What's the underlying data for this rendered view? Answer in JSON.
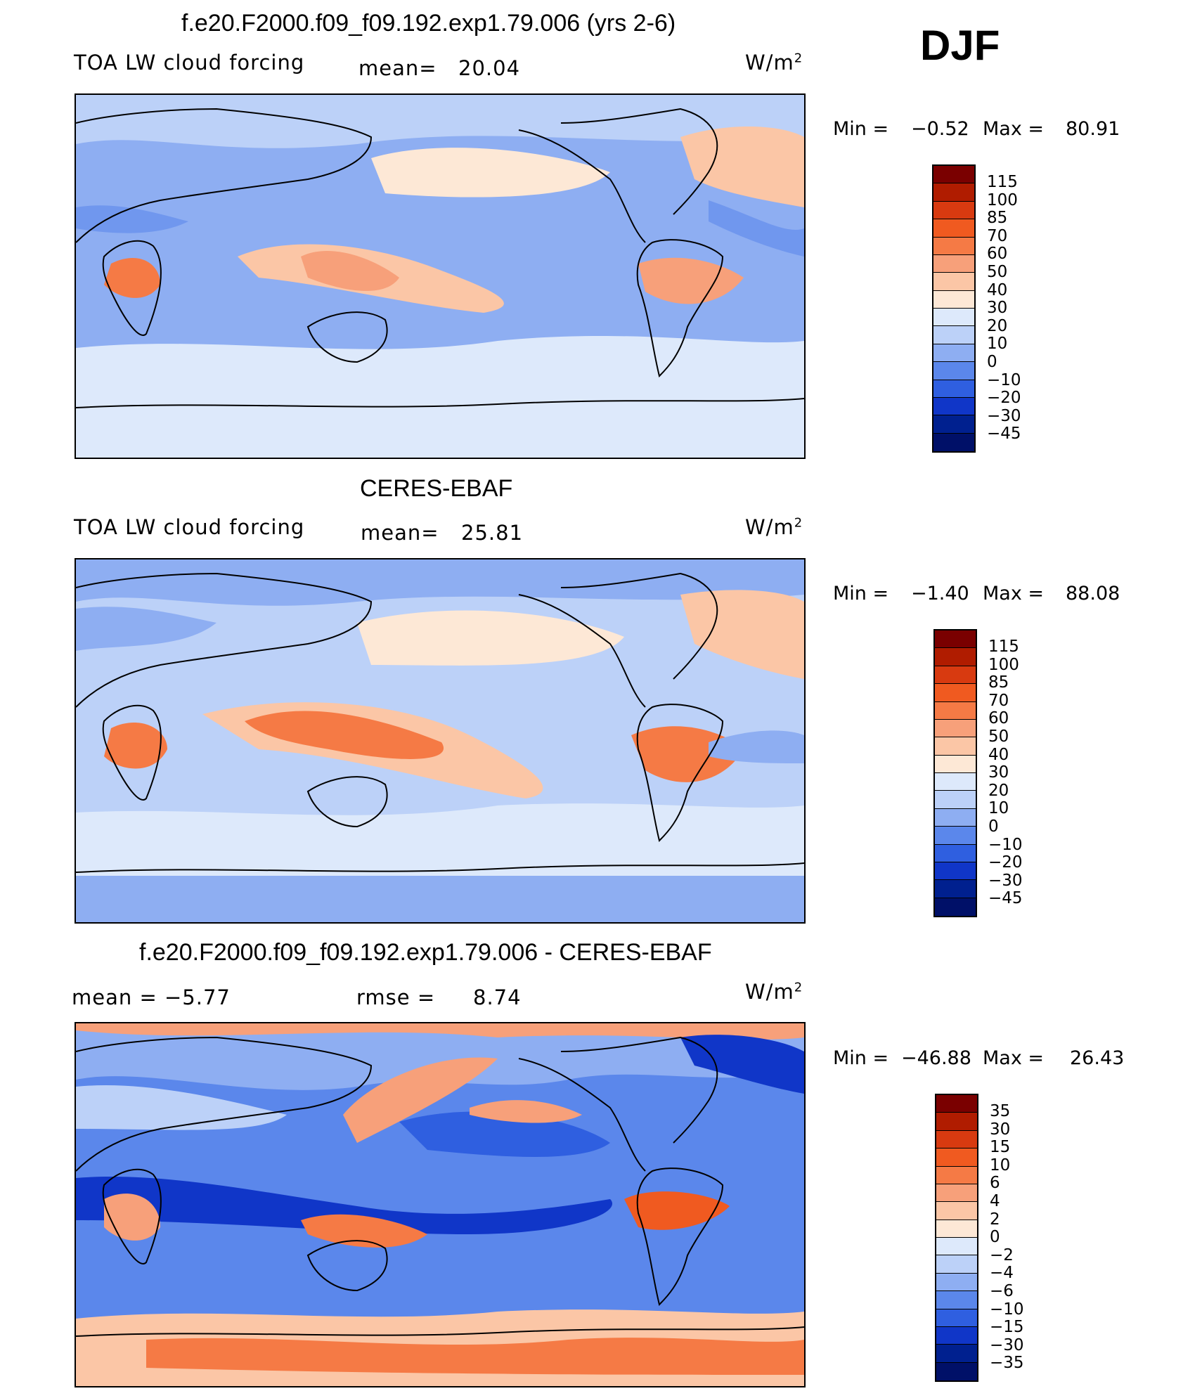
{
  "header": {
    "season": "DJF"
  },
  "panels": [
    {
      "title": "f.e20.F2000.f09_f09.192.exp1.79.006 (yrs 2-6)",
      "left_label": "TOA LW cloud forcing",
      "center_prefix": "mean=",
      "center_value": "20.04",
      "units": "W/m",
      "units_sup": "2",
      "stats": {
        "min_label": "Min =",
        "min": "-0.52",
        "max_label": "Max =",
        "max": "80.91"
      },
      "colorbar": {
        "levels": [
          "115",
          "100",
          "85",
          "70",
          "60",
          "50",
          "40",
          "30",
          "20",
          "10",
          "0",
          "-10",
          "-20",
          "-30",
          "-45"
        ],
        "colors": [
          "#7a0000",
          "#b01c00",
          "#d83a10",
          "#f05a20",
          "#f57a45",
          "#f7a07a",
          "#fbc6a6",
          "#fde8d6",
          "#dde9fb",
          "#bcd1f8",
          "#8eaef2",
          "#5b87eb",
          "#2f5fe0",
          "#1036c8",
          "#00208f",
          "#001068"
        ]
      }
    },
    {
      "title": "CERES-EBAF",
      "left_label": "TOA LW cloud forcing",
      "center_prefix": "mean=",
      "center_value": "25.81",
      "units": "W/m",
      "units_sup": "2",
      "stats": {
        "min_label": "Min =",
        "min": "-1.40",
        "max_label": "Max =",
        "max": "88.08"
      },
      "colorbar": {
        "levels": [
          "115",
          "100",
          "85",
          "70",
          "60",
          "50",
          "40",
          "30",
          "20",
          "10",
          "0",
          "-10",
          "-20",
          "-30",
          "-45"
        ],
        "colors": [
          "#7a0000",
          "#b01c00",
          "#d83a10",
          "#f05a20",
          "#f57a45",
          "#f7a07a",
          "#fbc6a6",
          "#fde8d6",
          "#dde9fb",
          "#bcd1f8",
          "#8eaef2",
          "#5b87eb",
          "#2f5fe0",
          "#1036c8",
          "#00208f",
          "#001068"
        ]
      }
    },
    {
      "title": "f.e20.F2000.f09_f09.192.exp1.79.006 - CERES-EBAF",
      "left_label": "mean = -5.77",
      "center_prefix": "rmse =",
      "center_value": "8.74",
      "units": "W/m",
      "units_sup": "2",
      "stats": {
        "min_label": "Min =",
        "min": "-46.88",
        "max_label": "Max =",
        "max": "26.43"
      },
      "colorbar": {
        "levels": [
          "35",
          "30",
          "15",
          "10",
          "6",
          "4",
          "2",
          "0",
          "-2",
          "-4",
          "-6",
          "-10",
          "-15",
          "-30",
          "-35"
        ],
        "colors": [
          "#7a0000",
          "#b01c00",
          "#d83a10",
          "#f05a20",
          "#f57a45",
          "#f7a07a",
          "#fbc6a6",
          "#fde8d6",
          "#dde9fb",
          "#bcd1f8",
          "#8eaef2",
          "#5b87eb",
          "#2f5fe0",
          "#1036c8",
          "#00208f",
          "#001068"
        ]
      }
    }
  ]
}
